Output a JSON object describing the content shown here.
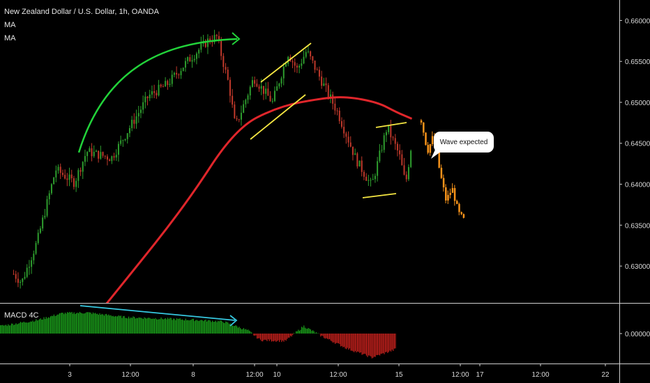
{
  "header": {
    "symbol_line": "New Zealand Dollar / U.S. Dollar, 1h, OANDA",
    "indicators": [
      "MA",
      "MA"
    ]
  },
  "colors": {
    "background": "#000000",
    "up_candle": "#2e9e2e",
    "down_candle": "#c0392b",
    "moving_average": "#e0262b",
    "projection": "#f7931a",
    "trend_arrow": "#22d33a",
    "channel_lines": "#f5e642",
    "macd_divergence": "#36c8e0",
    "macd_positive": "#1a9a1a",
    "macd_negative": "#c0201c"
  },
  "annotations": {
    "callout_text": "Wave expected",
    "macd_label": "MACD 4C"
  },
  "chart_data": [
    {
      "type": "candlestick",
      "series_name": "New Zealand Dollar / U.S. Dollar, 1h, OANDA",
      "ylim": [
        0.6255,
        0.6625
      ],
      "y_ticks": [
        "0.66000",
        "0.65500",
        "0.65000",
        "0.64500",
        "0.64000",
        "0.63500",
        "0.63000"
      ],
      "x_tick_labels": [
        "3",
        "12:00",
        "8",
        "12:00",
        "10",
        "12:00",
        "15",
        "12:00",
        "17",
        "12:00",
        "22"
      ],
      "price_path": [
        [
          0.0,
          0.6265
        ],
        [
          0.02,
          0.6292
        ],
        [
          0.035,
          0.628
        ],
        [
          0.06,
          0.633
        ],
        [
          0.09,
          0.6418
        ],
        [
          0.12,
          0.6402
        ],
        [
          0.14,
          0.644
        ],
        [
          0.18,
          0.6432
        ],
        [
          0.21,
          0.647
        ],
        [
          0.24,
          0.6508
        ],
        [
          0.27,
          0.6522
        ],
        [
          0.3,
          0.6548
        ],
        [
          0.335,
          0.6575
        ],
        [
          0.35,
          0.658
        ],
        [
          0.37,
          0.652
        ],
        [
          0.38,
          0.647
        ],
        [
          0.41,
          0.653
        ],
        [
          0.44,
          0.65
        ],
        [
          0.465,
          0.656
        ],
        [
          0.48,
          0.654
        ],
        [
          0.495,
          0.6563
        ],
        [
          0.52,
          0.6525
        ],
        [
          0.545,
          0.6488
        ],
        [
          0.575,
          0.643
        ],
        [
          0.6,
          0.6398
        ],
        [
          0.625,
          0.647
        ],
        [
          0.645,
          0.6435
        ],
        [
          0.655,
          0.64
        ],
        [
          0.665,
          0.6452
        ]
      ],
      "moving_average": [
        [
          0.06,
          0.615
        ],
        [
          0.2,
          0.628
        ],
        [
          0.3,
          0.6375
        ],
        [
          0.38,
          0.6468
        ],
        [
          0.45,
          0.6495
        ],
        [
          0.52,
          0.6505
        ],
        [
          0.56,
          0.6507
        ],
        [
          0.61,
          0.65
        ],
        [
          0.64,
          0.6488
        ],
        [
          0.665,
          0.648
        ]
      ],
      "projected_wave": [
        [
          0.68,
          0.6478
        ],
        [
          0.69,
          0.644
        ],
        [
          0.7,
          0.646
        ],
        [
          0.71,
          0.6415
        ],
        [
          0.72,
          0.638
        ],
        [
          0.73,
          0.6395
        ],
        [
          0.74,
          0.6365
        ],
        [
          0.75,
          0.6355
        ]
      ]
    },
    {
      "type": "bar",
      "series_name": "MACD 4C",
      "y_ticks": [
        "0.00000"
      ],
      "ylim": [
        -1.0,
        1.0
      ],
      "histogram": [
        [
          0.0,
          0.25
        ],
        [
          0.06,
          0.45
        ],
        [
          0.1,
          0.68
        ],
        [
          0.14,
          0.7
        ],
        [
          0.2,
          0.55
        ],
        [
          0.26,
          0.5
        ],
        [
          0.32,
          0.45
        ],
        [
          0.36,
          0.4
        ],
        [
          0.4,
          0.1
        ],
        [
          0.42,
          -0.22
        ],
        [
          0.46,
          -0.25
        ],
        [
          0.49,
          0.25
        ],
        [
          0.52,
          -0.1
        ],
        [
          0.56,
          -0.5
        ],
        [
          0.6,
          -0.8
        ],
        [
          0.635,
          -0.55
        ],
        [
          0.665,
          -0.2
        ]
      ]
    }
  ]
}
